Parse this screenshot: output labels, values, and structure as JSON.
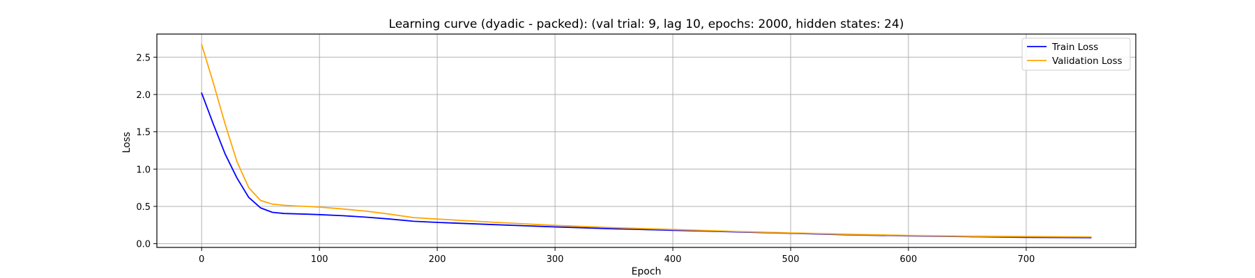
{
  "chart_data": {
    "type": "line",
    "title": "Learning curve (dyadic - packed): (val trial: 9, lag 10, epochs: 2000, hidden states: 24)",
    "xlabel": "Epoch",
    "ylabel": "Loss",
    "xlim": [
      -38,
      793
    ],
    "ylim": [
      -0.05,
      2.81
    ],
    "xticks": [
      0,
      100,
      200,
      300,
      400,
      500,
      600,
      700
    ],
    "yticks": [
      0.0,
      0.5,
      1.0,
      1.5,
      2.0,
      2.5
    ],
    "ytick_labels": [
      "0.0",
      "0.5",
      "1.0",
      "1.5",
      "2.0",
      "2.5"
    ],
    "grid": true,
    "legend_position": "top-right",
    "series": [
      {
        "name": "Train Loss",
        "color": "#0000ff",
        "x": [
          0,
          10,
          20,
          30,
          40,
          50,
          60,
          70,
          80,
          90,
          100,
          120,
          140,
          160,
          180,
          200,
          250,
          300,
          350,
          400,
          450,
          500,
          550,
          600,
          650,
          700,
          755
        ],
        "y": [
          2.02,
          1.6,
          1.2,
          0.88,
          0.62,
          0.48,
          0.42,
          0.405,
          0.4,
          0.395,
          0.39,
          0.375,
          0.355,
          0.33,
          0.3,
          0.285,
          0.255,
          0.225,
          0.2,
          0.18,
          0.16,
          0.14,
          0.12,
          0.105,
          0.095,
          0.085,
          0.08
        ]
      },
      {
        "name": "Validation Loss",
        "color": "#ffa500",
        "x": [
          0,
          10,
          20,
          30,
          40,
          50,
          60,
          70,
          80,
          90,
          100,
          120,
          140,
          160,
          180,
          200,
          250,
          300,
          350,
          400,
          450,
          500,
          550,
          600,
          650,
          700,
          755
        ],
        "y": [
          2.67,
          2.15,
          1.6,
          1.1,
          0.75,
          0.58,
          0.53,
          0.515,
          0.505,
          0.5,
          0.49,
          0.465,
          0.435,
          0.395,
          0.35,
          0.33,
          0.285,
          0.245,
          0.215,
          0.19,
          0.165,
          0.145,
          0.125,
          0.11,
          0.1,
          0.095,
          0.09
        ]
      }
    ]
  }
}
